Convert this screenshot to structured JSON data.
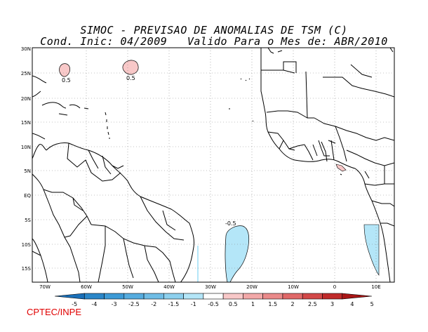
{
  "title": {
    "line1": "SIMOC - PREVISAO DE ANOMALIAS DE TSM (C)",
    "line2": "Cond. Inic: 04/2009   Valido Para o Mes de: ABR/2010"
  },
  "map": {
    "lat_labels": [
      "30N",
      "25N",
      "20N",
      "15N",
      "10N",
      "5N",
      "EQ",
      "5S",
      "10S",
      "15S"
    ],
    "lon_labels": [
      "70W",
      "60W",
      "50W",
      "40W",
      "30W",
      "20W",
      "10W",
      "0",
      "10E"
    ],
    "contour_labels": [
      "0.5",
      "0.5",
      "-0.5"
    ],
    "ocean_color": "#ffffff",
    "land_outline_color": "#000000",
    "grid": "dotted"
  },
  "colorbar": {
    "labels": [
      "-5",
      "-4",
      "-3",
      "-2.5",
      "-2",
      "-1.5",
      "-1",
      "-0.5",
      "0.5",
      "1",
      "1.5",
      "2",
      "2.5",
      "3",
      "4",
      "5"
    ],
    "colors": [
      "#1a6fb8",
      "#2a86c8",
      "#3d9ad6",
      "#56acdf",
      "#6fbde6",
      "#8dd0ee",
      "#b4e6f8",
      "#ffffff",
      "#f8c8c8",
      "#f2a8a8",
      "#ea8a8a",
      "#e06868",
      "#d24848",
      "#c02a2a",
      "#a81616"
    ]
  },
  "credit": "CPTEC/INPE"
}
